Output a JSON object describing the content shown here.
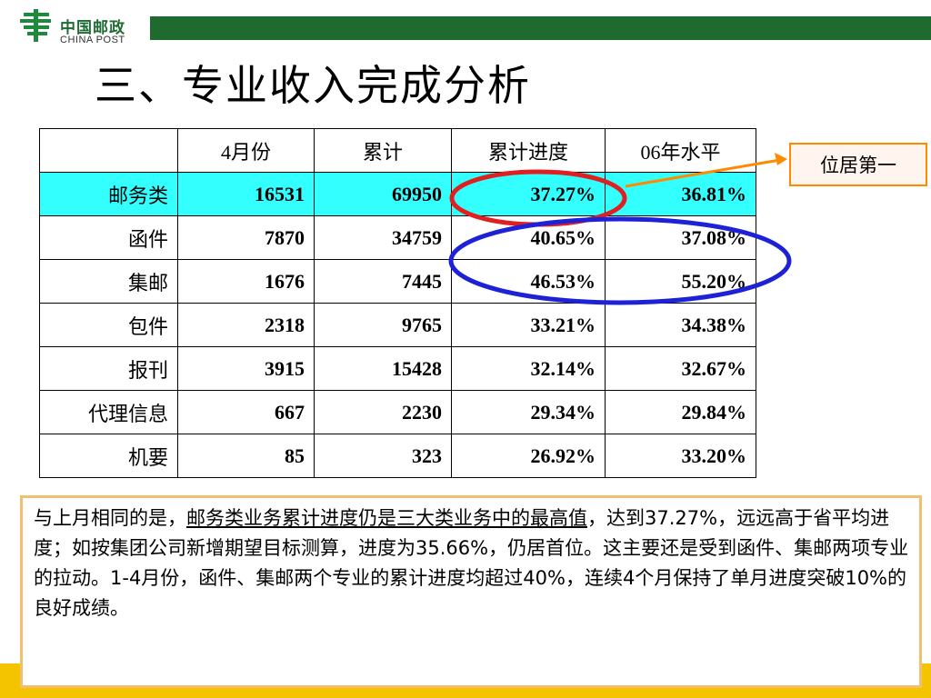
{
  "header": {
    "logo_cn": "中国邮政",
    "logo_en": "CHINA POST",
    "title": "三、专业收入完成分析"
  },
  "colors": {
    "brand_green": "#1f6b2f",
    "highlight_row": "#33ffff",
    "red_circle": "#e02020",
    "blue_circle": "#1e22d6",
    "callout_border": "#ff8a00",
    "footer_yellow": "#f5c400"
  },
  "table": {
    "headers": [
      "",
      "4月份",
      "累计",
      "累计进度",
      "06年水平"
    ],
    "rows": [
      [
        "邮务类",
        "16531",
        "69950",
        "37.27%",
        "36.81%"
      ],
      [
        "函件",
        "7870",
        "34759",
        "40.65%",
        "37.08%"
      ],
      [
        "集邮",
        "1676",
        "7445",
        "46.53%",
        "55.20%"
      ],
      [
        "包件",
        "2318",
        "9765",
        "33.21%",
        "34.38%"
      ],
      [
        "报刊",
        "3915",
        "15428",
        "32.14%",
        "32.67%"
      ],
      [
        "代理信息",
        "667",
        "2230",
        "29.34%",
        "29.84%"
      ],
      [
        "机要",
        "85",
        "323",
        "26.92%",
        "33.20%"
      ]
    ]
  },
  "callout": {
    "text": "位居第一"
  },
  "summary": {
    "prefix": "与上月相同的是，",
    "underlined": "邮务类业务累计进度仍是三大类业务中的最高值",
    "suffix": "，达到37.27%，远远高于省平均进度；如按集团公司新增期望目标测算，进度为35.66%，仍居首位。这主要还是受到函件、集邮两项专业的拉动。1-4月份，函件、集邮两个专业的累计进度均超过40%，连续4个月保持了单月进度突破10%的良好成绩。"
  }
}
